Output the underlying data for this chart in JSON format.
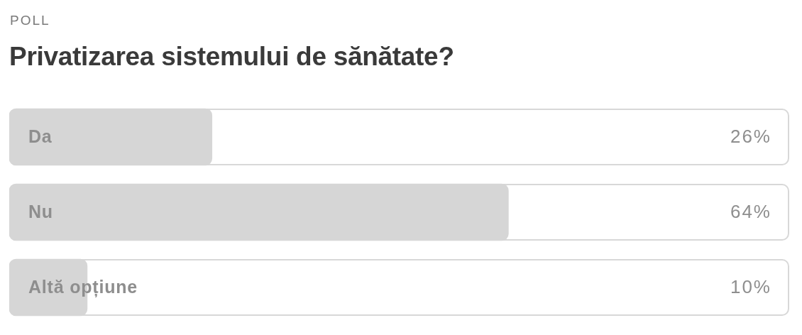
{
  "chart_data": {
    "type": "bar",
    "orientation": "horizontal",
    "subtitle": "POLL",
    "title": "Privatizarea sistemului de sănătate?",
    "categories": [
      "Da",
      "Nu",
      "Altă opțiune"
    ],
    "values": [
      26,
      64,
      10
    ],
    "value_labels": [
      "26%",
      "64%",
      "10%"
    ],
    "color": "#d6d6d6",
    "xlim": [
      0,
      100
    ],
    "tick_labels": "y",
    "grid": false,
    "legend": false
  }
}
